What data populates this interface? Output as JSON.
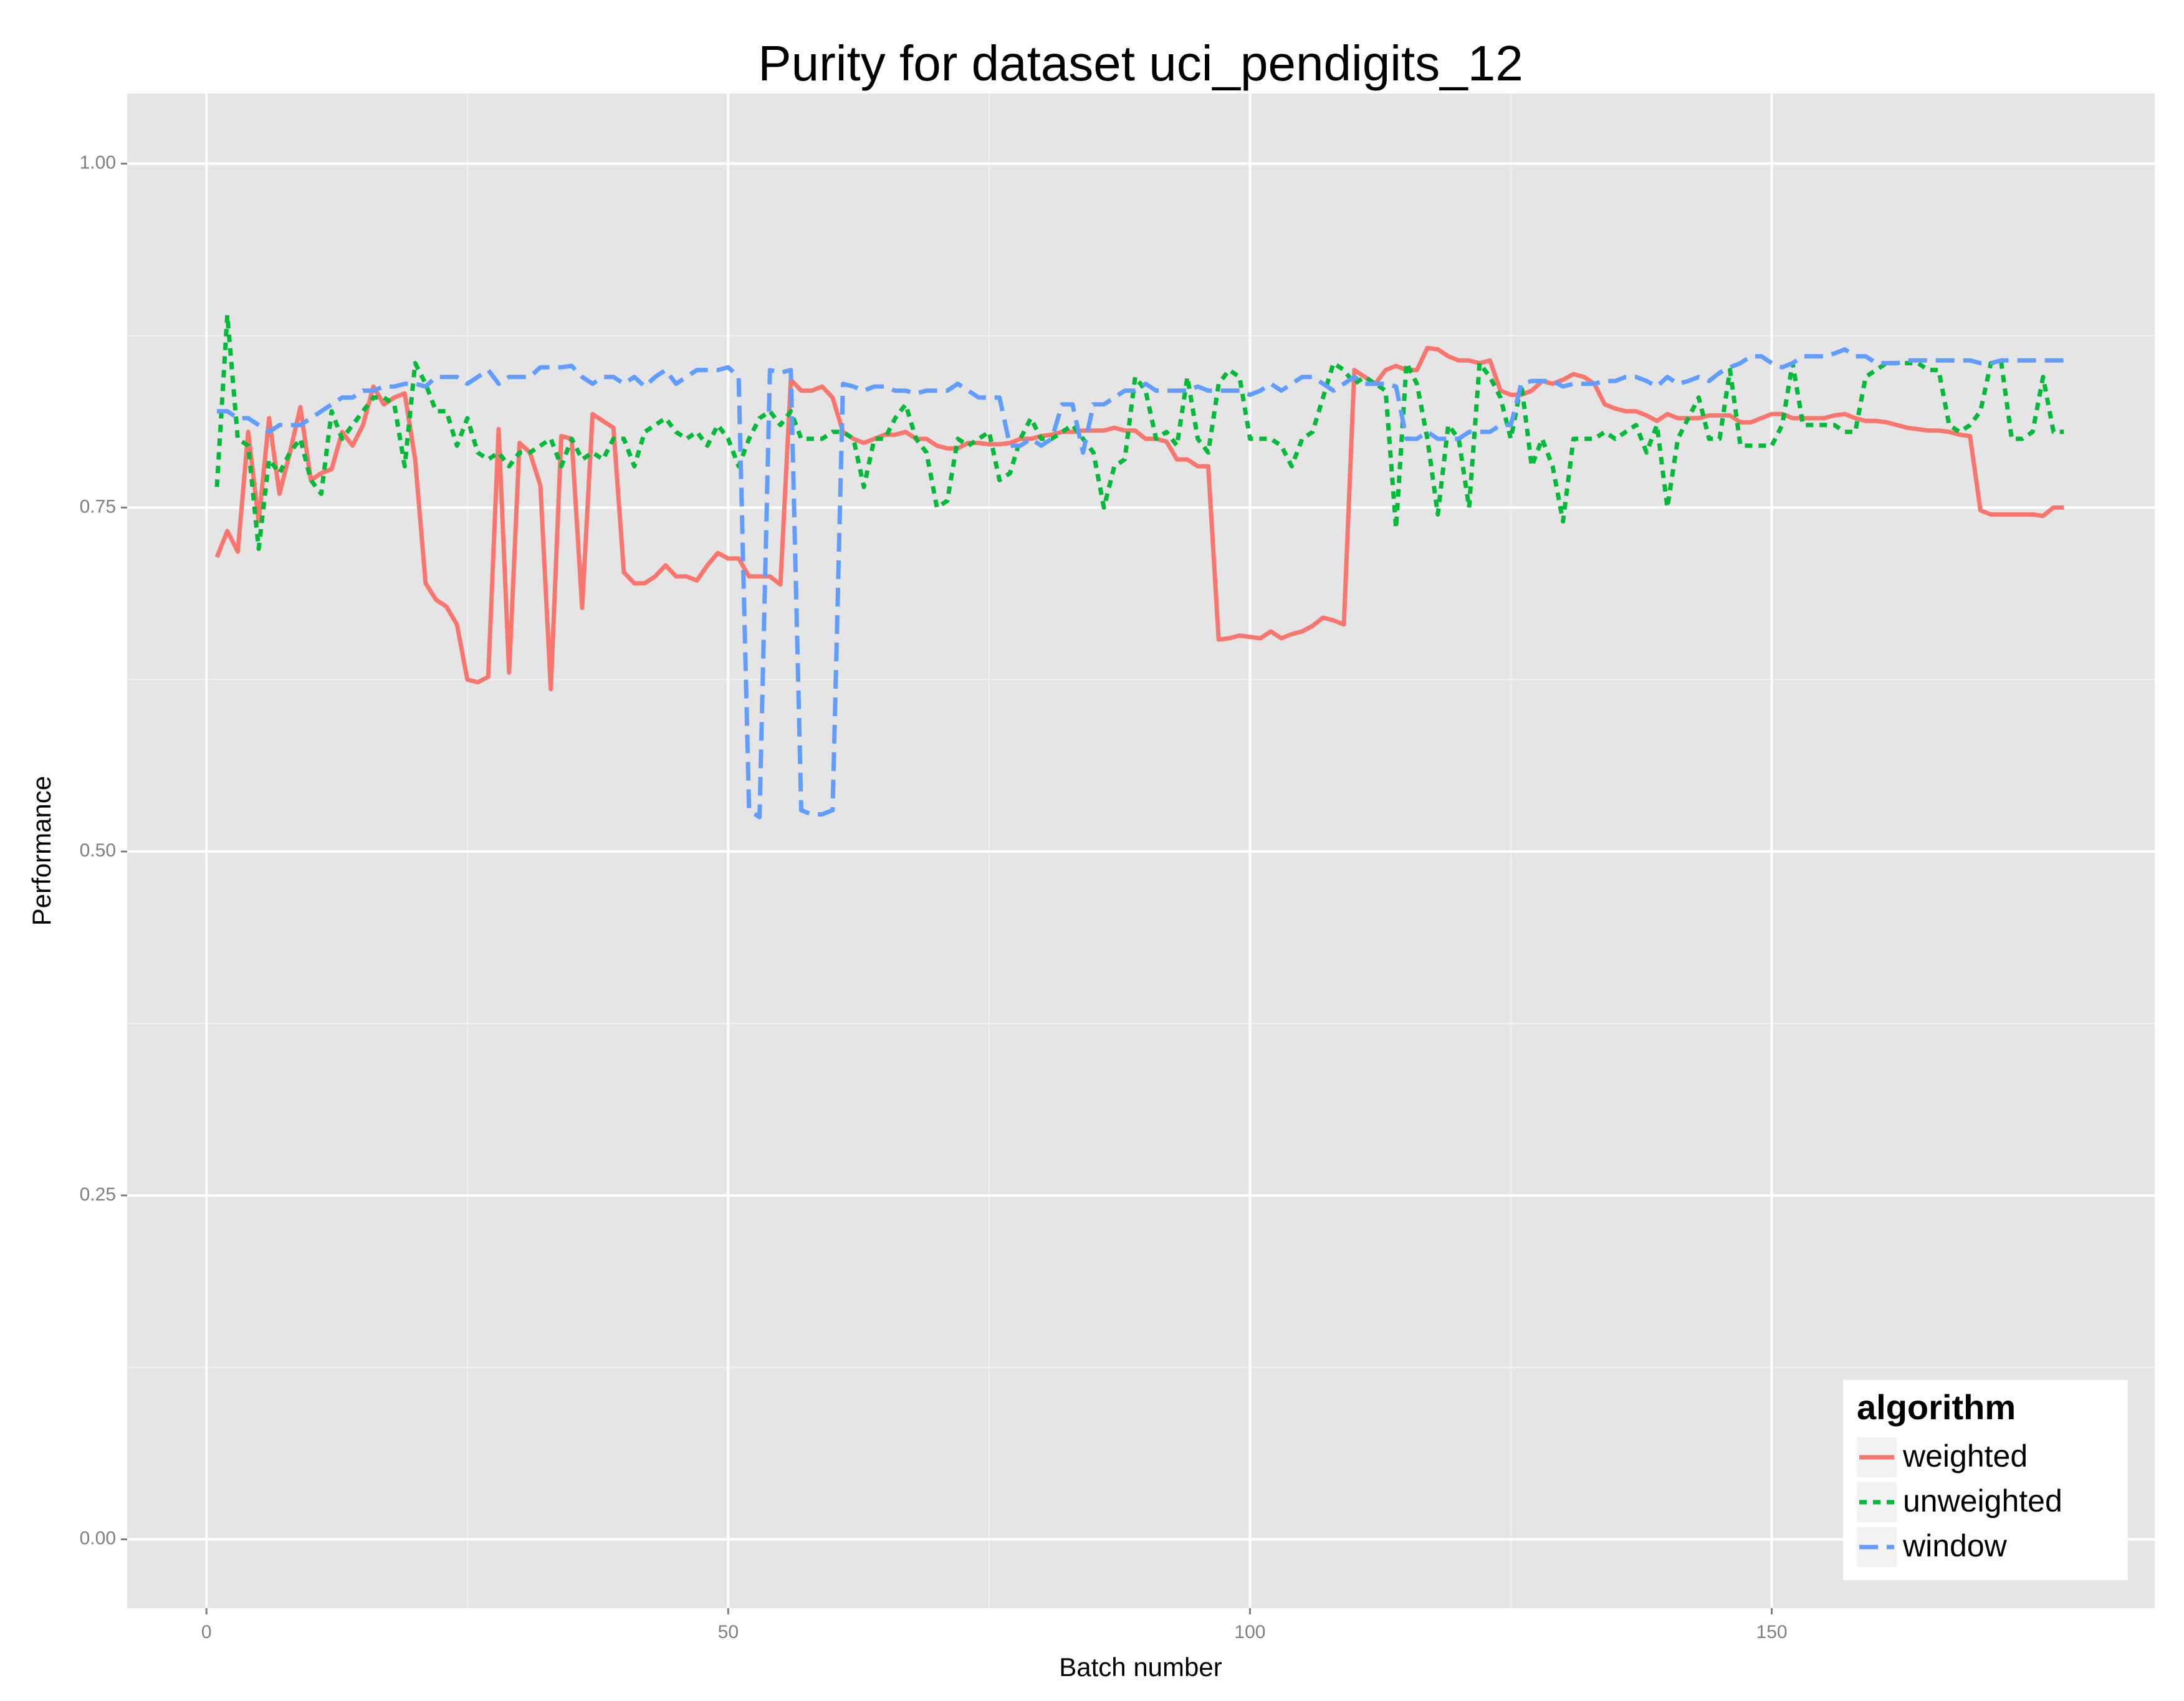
{
  "chart_data": {
    "type": "line",
    "title": "Purity for dataset uci_pendigits_12",
    "x_label": "Batch number",
    "y_label": "Performance",
    "legend_title": "algorithm",
    "legend_position": "bottom-right",
    "grid": true,
    "xlim": [
      -7.6,
      186.7
    ],
    "ylim": [
      -0.05,
      1.051
    ],
    "xticks": [
      0,
      50,
      100,
      150
    ],
    "yticks": [
      {
        "value": 0,
        "label": "0.00"
      },
      {
        "value": 0.25,
        "label": "0.25"
      },
      {
        "value": 0.5,
        "label": "0.50"
      },
      {
        "value": 0.75,
        "label": "0.75"
      },
      {
        "value": 1,
        "label": "1.00"
      }
    ],
    "x": [
      1,
      2,
      3,
      4,
      5,
      6,
      7,
      8,
      9,
      10,
      11,
      12,
      13,
      14,
      15,
      16,
      17,
      18,
      19,
      20,
      21,
      22,
      23,
      24,
      25,
      26,
      27,
      28,
      29,
      30,
      31,
      32,
      33,
      34,
      35,
      36,
      37,
      38,
      39,
      40,
      41,
      42,
      43,
      44,
      45,
      46,
      47,
      48,
      49,
      50,
      51,
      52,
      53,
      54,
      55,
      56,
      57,
      58,
      59,
      60,
      61,
      62,
      63,
      64,
      65,
      66,
      67,
      68,
      69,
      70,
      71,
      72,
      73,
      74,
      75,
      76,
      77,
      78,
      79,
      80,
      81,
      82,
      83,
      84,
      85,
      86,
      87,
      88,
      89,
      90,
      91,
      92,
      93,
      94,
      95,
      96,
      97,
      98,
      99,
      100,
      101,
      102,
      103,
      104,
      105,
      106,
      107,
      108,
      109,
      110,
      111,
      112,
      113,
      114,
      115,
      116,
      117,
      118,
      119,
      120,
      121,
      122,
      123,
      124,
      125,
      126,
      127,
      128,
      129,
      130,
      131,
      132,
      133,
      134,
      135,
      136,
      137,
      138,
      139,
      140,
      141,
      142,
      143,
      144,
      145,
      146,
      147,
      148,
      149,
      150,
      151,
      152,
      153,
      154,
      155,
      156,
      157,
      158,
      159,
      160,
      161,
      162,
      163,
      164,
      165,
      166,
      167,
      168,
      169,
      170,
      171,
      172,
      173,
      174,
      175,
      176,
      177,
      178
    ],
    "series": [
      {
        "name": "weighted",
        "color": "#f8766d",
        "dash": "solid",
        "values": [
          0.714,
          0.733,
          0.718,
          0.805,
          0.74,
          0.815,
          0.76,
          0.79,
          0.823,
          0.77,
          0.775,
          0.778,
          0.805,
          0.795,
          0.81,
          0.838,
          0.825,
          0.83,
          0.833,
          0.785,
          0.695,
          0.683,
          0.678,
          0.665,
          0.625,
          0.623,
          0.627,
          0.807,
          0.63,
          0.797,
          0.79,
          0.766,
          0.618,
          0.802,
          0.8,
          0.677,
          0.818,
          0.813,
          0.808,
          0.703,
          0.695,
          0.695,
          0.7,
          0.708,
          0.7,
          0.7,
          0.697,
          0.708,
          0.717,
          0.713,
          0.713,
          0.7,
          0.7,
          0.7,
          0.694,
          0.843,
          0.835,
          0.835,
          0.838,
          0.83,
          0.805,
          0.8,
          0.797,
          0.8,
          0.803,
          0.803,
          0.805,
          0.8,
          0.8,
          0.795,
          0.793,
          0.793,
          0.797,
          0.797,
          0.796,
          0.796,
          0.797,
          0.8,
          0.8,
          0.802,
          0.803,
          0.805,
          0.805,
          0.806,
          0.806,
          0.806,
          0.808,
          0.806,
          0.806,
          0.8,
          0.8,
          0.798,
          0.785,
          0.785,
          0.78,
          0.78,
          0.654,
          0.655,
          0.657,
          0.656,
          0.655,
          0.66,
          0.655,
          0.658,
          0.66,
          0.664,
          0.67,
          0.668,
          0.665,
          0.85,
          0.845,
          0.84,
          0.85,
          0.853,
          0.85,
          0.85,
          0.866,
          0.865,
          0.86,
          0.857,
          0.857,
          0.855,
          0.857,
          0.835,
          0.832,
          0.832,
          0.835,
          0.842,
          0.84,
          0.843,
          0.847,
          0.845,
          0.84,
          0.825,
          0.822,
          0.82,
          0.82,
          0.817,
          0.813,
          0.818,
          0.815,
          0.815,
          0.815,
          0.817,
          0.817,
          0.817,
          0.812,
          0.812,
          0.815,
          0.818,
          0.818,
          0.815,
          0.815,
          0.815,
          0.815,
          0.817,
          0.818,
          0.815,
          0.813,
          0.813,
          0.812,
          0.81,
          0.808,
          0.807,
          0.806,
          0.806,
          0.805,
          0.803,
          0.802,
          0.748,
          0.745,
          0.745,
          0.745,
          0.745,
          0.745,
          0.744,
          0.75,
          0.75
        ]
      },
      {
        "name": "unweighted",
        "color": "#00ba38",
        "dash": "dotted",
        "values": [
          0.765,
          0.89,
          0.8,
          0.795,
          0.72,
          0.785,
          0.775,
          0.79,
          0.8,
          0.77,
          0.76,
          0.82,
          0.8,
          0.81,
          0.82,
          0.83,
          0.83,
          0.825,
          0.78,
          0.855,
          0.84,
          0.82,
          0.82,
          0.795,
          0.815,
          0.79,
          0.785,
          0.79,
          0.78,
          0.79,
          0.79,
          0.795,
          0.8,
          0.78,
          0.8,
          0.785,
          0.79,
          0.785,
          0.8,
          0.8,
          0.78,
          0.805,
          0.81,
          0.815,
          0.805,
          0.8,
          0.805,
          0.795,
          0.81,
          0.8,
          0.78,
          0.8,
          0.815,
          0.82,
          0.81,
          0.82,
          0.8,
          0.8,
          0.8,
          0.805,
          0.805,
          0.8,
          0.765,
          0.8,
          0.8,
          0.815,
          0.825,
          0.8,
          0.79,
          0.75,
          0.755,
          0.8,
          0.795,
          0.8,
          0.805,
          0.77,
          0.775,
          0.8,
          0.815,
          0.8,
          0.8,
          0.805,
          0.81,
          0.8,
          0.79,
          0.75,
          0.78,
          0.785,
          0.845,
          0.835,
          0.8,
          0.805,
          0.795,
          0.845,
          0.8,
          0.79,
          0.84,
          0.85,
          0.845,
          0.8,
          0.8,
          0.8,
          0.795,
          0.78,
          0.8,
          0.805,
          0.83,
          0.855,
          0.85,
          0.84,
          0.845,
          0.84,
          0.835,
          0.735,
          0.855,
          0.84,
          0.8,
          0.745,
          0.81,
          0.8,
          0.75,
          0.855,
          0.845,
          0.83,
          0.8,
          0.84,
          0.78,
          0.8,
          0.78,
          0.74,
          0.8,
          0.8,
          0.8,
          0.805,
          0.8,
          0.805,
          0.81,
          0.79,
          0.81,
          0.75,
          0.8,
          0.815,
          0.83,
          0.8,
          0.8,
          0.85,
          0.795,
          0.795,
          0.795,
          0.795,
          0.81,
          0.855,
          0.81,
          0.81,
          0.81,
          0.81,
          0.805,
          0.805,
          0.845,
          0.85,
          0.855,
          0.855,
          0.855,
          0.855,
          0.85,
          0.85,
          0.81,
          0.805,
          0.81,
          0.82,
          0.855,
          0.855,
          0.8,
          0.8,
          0.805,
          0.845,
          0.805,
          0.805
        ]
      },
      {
        "name": "window",
        "color": "#619cff",
        "dash": "dashed",
        "values": [
          0.82,
          0.82,
          0.815,
          0.815,
          0.81,
          0.805,
          0.81,
          0.81,
          0.81,
          0.815,
          0.82,
          0.825,
          0.83,
          0.83,
          0.835,
          0.835,
          0.838,
          0.838,
          0.84,
          0.84,
          0.838,
          0.845,
          0.845,
          0.845,
          0.84,
          0.845,
          0.85,
          0.84,
          0.845,
          0.845,
          0.845,
          0.852,
          0.852,
          0.852,
          0.853,
          0.845,
          0.84,
          0.845,
          0.845,
          0.84,
          0.845,
          0.838,
          0.845,
          0.85,
          0.84,
          0.845,
          0.85,
          0.85,
          0.85,
          0.852,
          0.845,
          0.53,
          0.525,
          0.85,
          0.848,
          0.85,
          0.53,
          0.527,
          0.527,
          0.53,
          0.84,
          0.838,
          0.835,
          0.838,
          0.838,
          0.835,
          0.835,
          0.833,
          0.835,
          0.835,
          0.835,
          0.84,
          0.835,
          0.83,
          0.83,
          0.83,
          0.795,
          0.795,
          0.8,
          0.795,
          0.8,
          0.825,
          0.825,
          0.79,
          0.825,
          0.825,
          0.83,
          0.835,
          0.835,
          0.84,
          0.835,
          0.835,
          0.835,
          0.835,
          0.838,
          0.835,
          0.835,
          0.835,
          0.835,
          0.832,
          0.835,
          0.84,
          0.835,
          0.84,
          0.845,
          0.845,
          0.84,
          0.835,
          0.84,
          0.845,
          0.84,
          0.84,
          0.84,
          0.838,
          0.8,
          0.8,
          0.805,
          0.8,
          0.8,
          0.8,
          0.805,
          0.805,
          0.805,
          0.81,
          0.81,
          0.84,
          0.842,
          0.842,
          0.842,
          0.838,
          0.84,
          0.84,
          0.84,
          0.842,
          0.842,
          0.845,
          0.845,
          0.842,
          0.838,
          0.845,
          0.84,
          0.842,
          0.845,
          0.842,
          0.848,
          0.852,
          0.855,
          0.86,
          0.86,
          0.855,
          0.852,
          0.855,
          0.86,
          0.86,
          0.86,
          0.862,
          0.865,
          0.86,
          0.86,
          0.855,
          0.855,
          0.855,
          0.857,
          0.857,
          0.857,
          0.857,
          0.857,
          0.857,
          0.857,
          0.855,
          0.855,
          0.857,
          0.857,
          0.857,
          0.857,
          0.857,
          0.857,
          0.857
        ]
      }
    ]
  }
}
